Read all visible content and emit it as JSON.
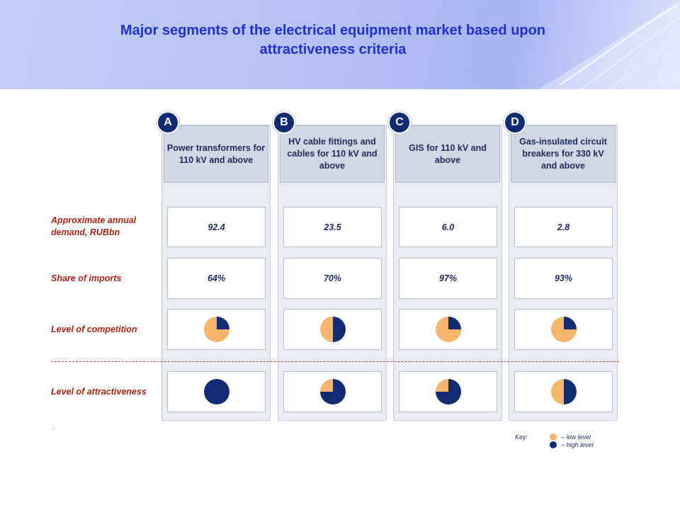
{
  "title": "Major segments of the electrical equipment market based upon attractiveness criteria",
  "colors": {
    "low": "#f5b66b",
    "high": "#0f2c74",
    "title": "#1f2fd8",
    "label": "#b02418"
  },
  "row_labels": {
    "demand": "Approximate annual demand, RUBbn",
    "imports": "Share of imports",
    "competition": "Level of competition",
    "attractiveness": "Level of attractiveness"
  },
  "footnote": ".",
  "key": {
    "label": "Key:",
    "low": "–  low level",
    "high": "–  high level"
  },
  "chart_data": {
    "type": "table",
    "title": "Major segments of the electrical equipment market based upon attractiveness criteria",
    "columns": [
      {
        "letter": "A",
        "name": "Power transformers for 110 kV and above",
        "demand": "92.4",
        "imports": "64%",
        "competition_high_share": 0.25,
        "attractiveness_high_share": 1.0
      },
      {
        "letter": "B",
        "name": "HV cable fittings and cables for 110 kV and above",
        "demand": "23.5",
        "imports": "70%",
        "competition_high_share": 0.5,
        "attractiveness_high_share": 0.75
      },
      {
        "letter": "C",
        "name": "GIS for 110 kV and above",
        "demand": "6.0",
        "imports": "97%",
        "competition_high_share": 0.25,
        "attractiveness_high_share": 0.75
      },
      {
        "letter": "D",
        "name": "Gas-insulated circuit breakers for 330 kV and above",
        "demand": "2.8",
        "imports": "93%",
        "competition_high_share": 0.25,
        "attractiveness_high_share": 0.5
      }
    ],
    "legend": {
      "low": "low level",
      "high": "high level",
      "placement": "bottom-right"
    }
  }
}
